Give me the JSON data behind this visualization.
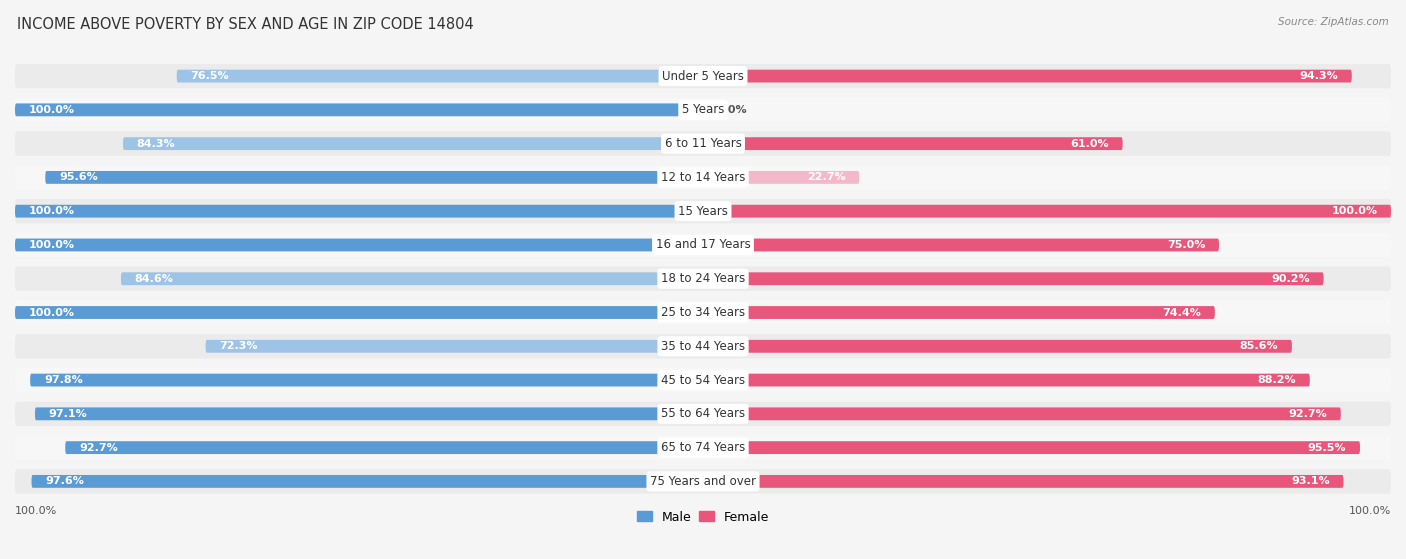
{
  "title": "INCOME ABOVE POVERTY BY SEX AND AGE IN ZIP CODE 14804",
  "source": "Source: ZipAtlas.com",
  "categories": [
    "Under 5 Years",
    "5 Years",
    "6 to 11 Years",
    "12 to 14 Years",
    "15 Years",
    "16 and 17 Years",
    "18 to 24 Years",
    "25 to 34 Years",
    "35 to 44 Years",
    "45 to 54 Years",
    "55 to 64 Years",
    "65 to 74 Years",
    "75 Years and over"
  ],
  "male_values": [
    76.5,
    100.0,
    84.3,
    95.6,
    100.0,
    100.0,
    84.6,
    100.0,
    72.3,
    97.8,
    97.1,
    92.7,
    97.6
  ],
  "female_values": [
    94.3,
    0.0,
    61.0,
    22.7,
    100.0,
    75.0,
    90.2,
    74.4,
    85.6,
    88.2,
    92.7,
    95.5,
    93.1
  ],
  "male_color_full": "#5b9bd5",
  "male_color_light": "#9dc3e6",
  "female_color_full": "#e9567b",
  "female_color_light": "#f4b8cb",
  "row_color_even": "#ebebeb",
  "row_color_odd": "#f7f7f7",
  "bg_color": "#f5f5f5",
  "title_fontsize": 10.5,
  "bar_label_fontsize": 8,
  "axis_label_fontsize": 8,
  "cat_label_fontsize": 8.5,
  "legend_fontsize": 9
}
